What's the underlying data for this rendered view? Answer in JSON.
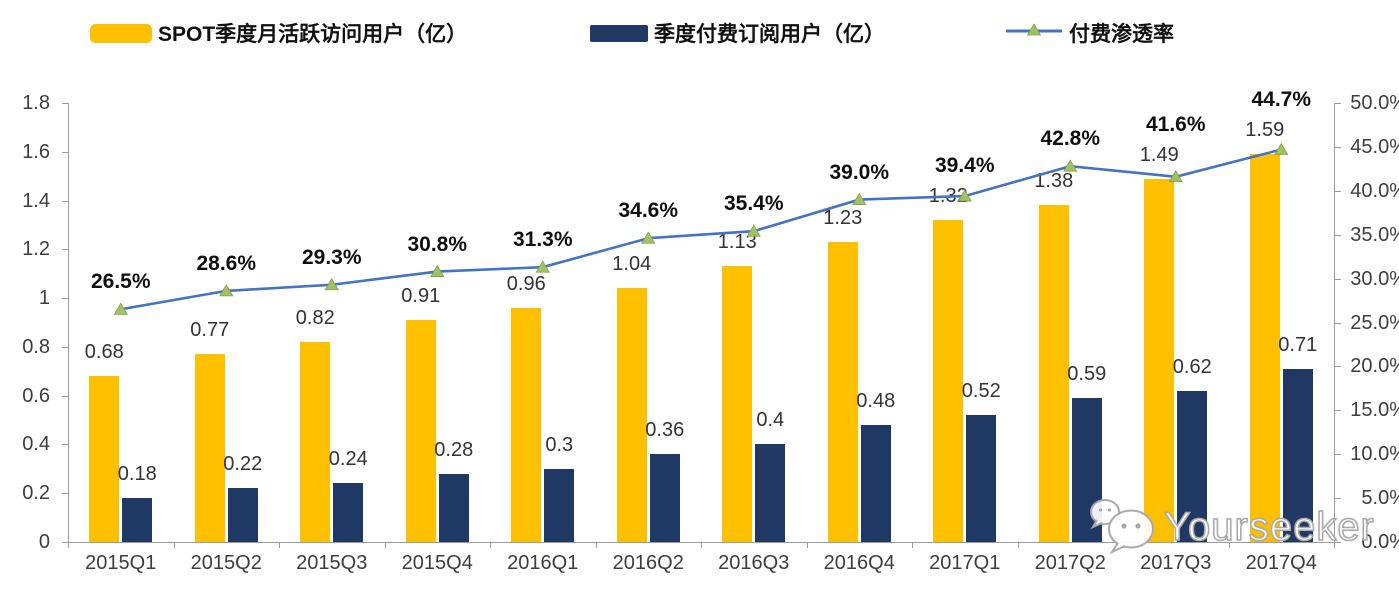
{
  "legend": [
    {
      "label": "SPOT季度月活跃访问用户（亿）",
      "type": "bar",
      "color": "#FFC000"
    },
    {
      "label": "季度付费订阅用户（亿）",
      "type": "bar",
      "color": "#1F3864"
    },
    {
      "label": "付费渗透率",
      "type": "line",
      "color": "#4472C4",
      "marker_color": "#A3C065",
      "marker_edge": "#7FA347"
    }
  ],
  "watermark": {
    "text": "Yourseeker",
    "icon": "wechat-icon"
  },
  "chart_data": {
    "type": "bar+line-combo",
    "title": "",
    "categories": [
      "2015Q1",
      "2015Q2",
      "2015Q3",
      "2015Q4",
      "2016Q1",
      "2016Q2",
      "2016Q3",
      "2016Q4",
      "2017Q1",
      "2017Q2",
      "2017Q3",
      "2017Q4"
    ],
    "series": [
      {
        "name": "SPOT季度月活跃访问用户（亿）",
        "type": "bar",
        "axis": "left",
        "color": "#FFC000",
        "values": [
          0.68,
          0.77,
          0.82,
          0.91,
          0.96,
          1.04,
          1.13,
          1.23,
          1.32,
          1.38,
          1.49,
          1.59
        ]
      },
      {
        "name": "季度付费订阅用户（亿）",
        "type": "bar",
        "axis": "left",
        "color": "#1F3864",
        "values": [
          0.18,
          0.22,
          0.24,
          0.28,
          0.3,
          0.36,
          0.4,
          0.48,
          0.52,
          0.59,
          0.62,
          0.71
        ]
      },
      {
        "name": "付费渗透率",
        "type": "line",
        "axis": "right",
        "color": "#4472C4",
        "marker": "triangle",
        "marker_color": "#A3C065",
        "values": [
          26.5,
          28.6,
          29.3,
          30.8,
          31.3,
          34.6,
          35.4,
          39.0,
          39.4,
          42.8,
          41.6,
          44.7
        ],
        "labels": [
          "26.5%",
          "28.6%",
          "29.3%",
          "30.8%",
          "31.3%",
          "34.6%",
          "35.4%",
          "39.0%",
          "39.4%",
          "42.8%",
          "41.6%",
          "44.7%"
        ]
      }
    ],
    "left_axis": {
      "min": 0,
      "max": 1.8,
      "step": 0.2,
      "ticks": [
        "1.8",
        "1.6",
        "1.4",
        "1.2",
        "1",
        "0.8",
        "0.6",
        "0.4",
        "0.2",
        "0"
      ]
    },
    "right_axis": {
      "min": 0,
      "max": 50,
      "step": 5,
      "ticks": [
        "50.0%",
        "45.0%",
        "40.0%",
        "35.0%",
        "30.0%",
        "25.0%",
        "20.0%",
        "15.0%",
        "10.0%",
        "5.0%",
        "0.0%"
      ]
    },
    "grid": false,
    "legend_position": "top"
  }
}
